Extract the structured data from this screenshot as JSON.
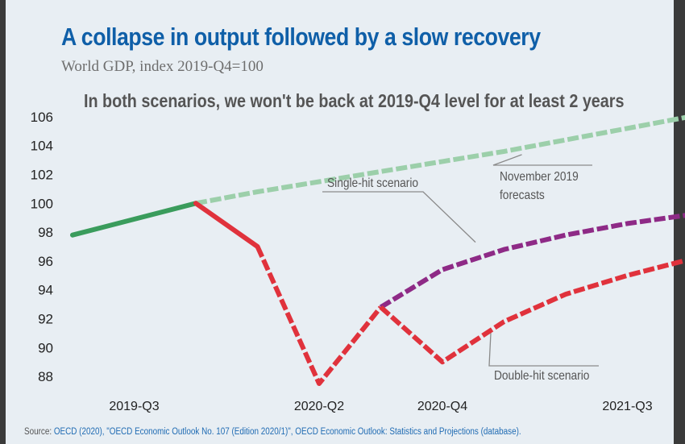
{
  "header": {
    "title": "A collapse in output followed by a slow recovery",
    "subtitle": "World GDP, index 2019-Q4=100"
  },
  "footer": {
    "source_prefix": "Source: ",
    "source_text": "OECD (2020), \"OECD Economic Outlook No. 107 (Edition 2020/1)\", OECD Economic Outlook: Statistics and Projections (database)."
  },
  "chart_data": {
    "type": "line",
    "title": "A collapse in output followed by a slow recovery",
    "subtitle": "World GDP, index 2019-Q4=100",
    "headline_annotation": "In both scenarios, we won't be back at 2019-Q4 level for at least 2 years",
    "x": [
      "2019-Q2",
      "2019-Q3",
      "2019-Q4",
      "2020-Q1",
      "2020-Q2",
      "2020-Q3",
      "2020-Q4",
      "2021-Q1",
      "2021-Q2",
      "2021-Q3",
      "2021-Q4"
    ],
    "x_tick_labels": [
      "2019-Q3",
      "2020-Q2",
      "2020-Q4",
      "2021-Q3"
    ],
    "y_ticks": [
      88,
      90,
      92,
      94,
      96,
      98,
      100,
      102,
      104,
      106
    ],
    "ylim": [
      87.5,
      106.5
    ],
    "grid": false,
    "colors": {
      "historical": "#3a9c5c",
      "forecast": "#9ccfaa",
      "single_hit": "#8e2a86",
      "double_hit": "#e0323c"
    },
    "series": [
      {
        "name": "",
        "style": "solid",
        "color": "#3a9c5c",
        "points": [
          [
            "2019-Q2",
            97.8
          ],
          [
            "2019-Q3",
            98.9
          ],
          [
            "2019-Q4",
            100.0
          ]
        ]
      },
      {
        "name": "November 2019 forecasts",
        "style": "dashed",
        "color": "#9ccfaa",
        "points": [
          [
            "2019-Q4",
            100.0
          ],
          [
            "2020-Q1",
            100.8
          ],
          [
            "2020-Q2",
            101.5
          ],
          [
            "2020-Q3",
            102.2
          ],
          [
            "2020-Q4",
            102.9
          ],
          [
            "2021-Q1",
            103.6
          ],
          [
            "2021-Q2",
            104.4
          ],
          [
            "2021-Q3",
            105.2
          ],
          [
            "2021-Q4",
            106.0
          ]
        ]
      },
      {
        "name": "",
        "style": "solid",
        "color": "#e0323c",
        "points": [
          [
            "2019-Q4",
            100.0
          ],
          [
            "2020-Q1",
            97.0
          ]
        ]
      },
      {
        "name": "",
        "style": "dashed",
        "color": "#e0323c",
        "points": [
          [
            "2020-Q1",
            97.0
          ],
          [
            "2020-Q2",
            87.5
          ],
          [
            "2020-Q3",
            92.8
          ]
        ]
      },
      {
        "name": "Single-hit scenario",
        "style": "dashed",
        "color": "#8e2a86",
        "points": [
          [
            "2020-Q3",
            92.8
          ],
          [
            "2020-Q4",
            95.4
          ],
          [
            "2021-Q1",
            96.8
          ],
          [
            "2021-Q2",
            97.8
          ],
          [
            "2021-Q3",
            98.6
          ],
          [
            "2021-Q4",
            99.2
          ]
        ]
      },
      {
        "name": "Double-hit scenario",
        "style": "dashed",
        "color": "#e0323c",
        "points": [
          [
            "2020-Q3",
            92.8
          ],
          [
            "2020-Q4",
            89.0
          ],
          [
            "2021-Q1",
            91.8
          ],
          [
            "2021-Q2",
            93.7
          ],
          [
            "2021-Q3",
            95.0
          ],
          [
            "2021-Q4",
            96.1
          ]
        ]
      }
    ],
    "annotations": [
      {
        "label": "November 2019",
        "label2": "forecasts",
        "target_series": 1
      },
      {
        "label": "Single-hit scenario",
        "target_series": 4
      },
      {
        "label": "Double-hit scenario",
        "target_series": 5
      }
    ]
  }
}
